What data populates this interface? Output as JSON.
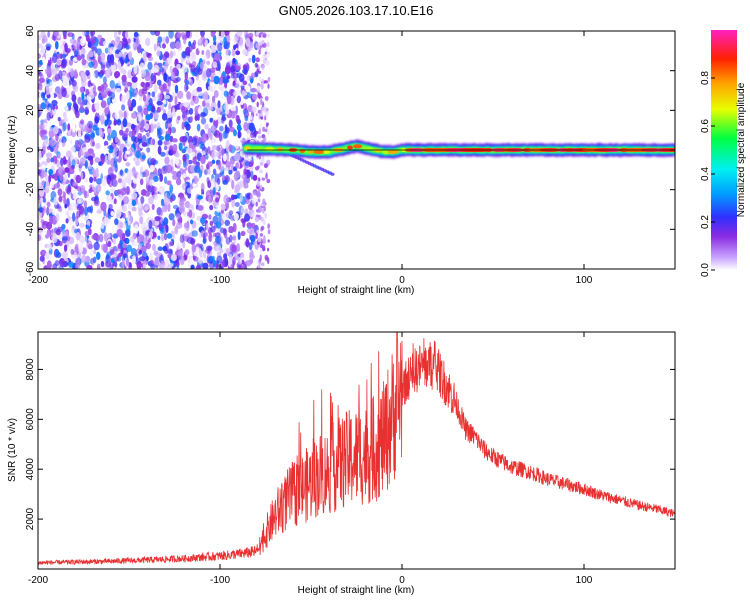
{
  "title": "GN05.2026.103.17.10.E16",
  "chart_data": [
    {
      "type": "heatmap",
      "xlabel": "Height of straight line (km)",
      "ylabel": "Frequency (Hz)",
      "xlim": [
        -200,
        150
      ],
      "ylim": [
        -60,
        60
      ],
      "x_ticks": [
        -200,
        -100,
        0,
        100
      ],
      "y_ticks": [
        -60,
        -40,
        -20,
        0,
        20,
        40,
        60
      ],
      "grid": false,
      "colorbar": {
        "label": "Normalized spectral amplitude",
        "range": [
          0.0,
          1.0
        ],
        "ticks": [
          0.0,
          0.2,
          0.4,
          0.6,
          0.8
        ],
        "colormap": "rainbow (white-violet-blue-cyan-green-yellow-orange-red-magenta)"
      },
      "regions": [
        {
          "x_range": [
            -200,
            -80
          ],
          "description": "broadband noise",
          "amplitude_range": [
            0.0,
            0.3
          ]
        },
        {
          "x_range": [
            -80,
            -73
          ],
          "description": "sparse noise column",
          "amplitude_range": [
            0.0,
            0.15
          ]
        },
        {
          "x_range": [
            -87,
            150
          ],
          "description": "narrow ridge near 0 Hz",
          "center_freq_hz": 0,
          "half_width_hz": 2,
          "peak_amplitude": 1.0
        }
      ],
      "ridge": {
        "x": [
          -87,
          -60,
          -50,
          -40,
          -30,
          -25,
          -20,
          -15,
          -10,
          -5,
          0,
          10,
          20,
          50,
          100,
          150
        ],
        "y": [
          1,
          0,
          -1,
          -1,
          1,
          2,
          1,
          0,
          -1,
          -1,
          0,
          0,
          0,
          0,
          0,
          0
        ]
      }
    },
    {
      "type": "line",
      "xlabel": "Height of straight line (km)",
      "ylabel": "SNR (10 * v/v)",
      "xlim": [
        -200,
        150
      ],
      "ylim": [
        0,
        9500
      ],
      "x_ticks": [
        -200,
        -100,
        0,
        100
      ],
      "y_ticks": [
        2000,
        4000,
        6000,
        8000
      ],
      "grid": false,
      "series": [
        {
          "color": "#e83030",
          "x": [
            -200,
            -180,
            -160,
            -140,
            -120,
            -100,
            -90,
            -80,
            -75,
            -70,
            -65,
            -60,
            -55,
            -50,
            -45,
            -40,
            -35,
            -30,
            -25,
            -20,
            -15,
            -10,
            -5,
            0,
            5,
            10,
            15,
            20,
            25,
            30,
            35,
            40,
            45,
            50,
            55,
            60,
            70,
            80,
            90,
            100,
            110,
            120,
            130,
            140,
            150
          ],
          "y": [
            250,
            280,
            310,
            360,
            420,
            520,
            600,
            700,
            1400,
            2100,
            2600,
            3000,
            3200,
            3500,
            3800,
            3900,
            4200,
            4400,
            4500,
            4600,
            4800,
            5200,
            6200,
            7300,
            7800,
            8100,
            8200,
            7900,
            7300,
            6600,
            5600,
            5300,
            4800,
            4500,
            4300,
            4100,
            3900,
            3600,
            3400,
            3200,
            2950,
            2750,
            2550,
            2400,
            2200
          ]
        }
      ]
    }
  ]
}
